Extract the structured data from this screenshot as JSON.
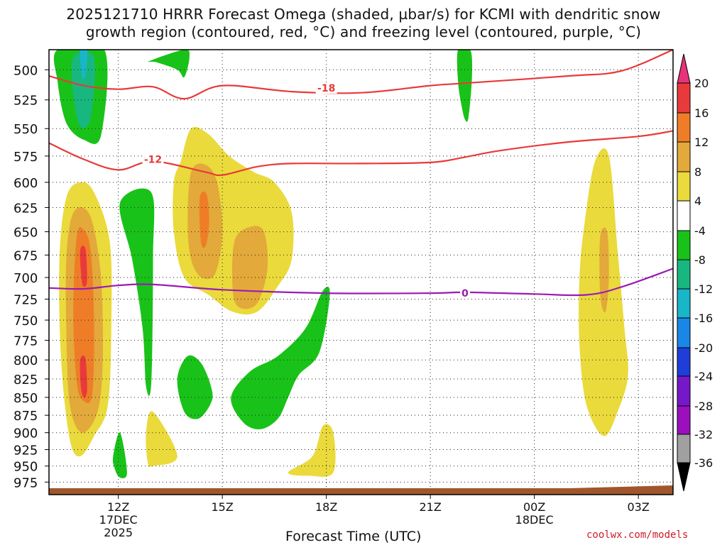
{
  "title_line1": "2025121710 HRRR Forecast Omega (shaded, µbar/s) for KCMI with dendritic snow",
  "title_line2": "growth region (contoured, red, °C) and freezing level (contoured, purple, °C)",
  "credit": "coolwx.com/models",
  "chart_data": {
    "type": "time-height",
    "xlabel": "Forecast Time (UTC)",
    "x_ticks": [
      {
        "label": "12Z",
        "sub": [
          "17DEC",
          "2025"
        ],
        "hour": 12
      },
      {
        "label": "15Z",
        "sub": [],
        "hour": 15
      },
      {
        "label": "18Z",
        "sub": [],
        "hour": 18
      },
      {
        "label": "21Z",
        "sub": [],
        "hour": 21
      },
      {
        "label": "00Z",
        "sub": [
          "18DEC"
        ],
        "hour": 24
      },
      {
        "label": "03Z",
        "sub": [],
        "hour": 27
      }
    ],
    "xlim_hours": [
      10,
      28
    ],
    "y_ticks": [
      500,
      525,
      550,
      575,
      600,
      625,
      650,
      675,
      700,
      725,
      750,
      775,
      800,
      825,
      850,
      875,
      900,
      925,
      950,
      975
    ],
    "ylim_hPa": [
      484,
      995
    ],
    "y_scale": "log-pressure",
    "grid": true,
    "colorbar": {
      "labels": [
        "20",
        "16",
        "12",
        "8",
        "4",
        "-4",
        "-8",
        "-12",
        "-16",
        "-20",
        "-24",
        "-28",
        "-32",
        "-36"
      ],
      "colors": [
        "#e8327a",
        "#e83a3a",
        "#ef7d28",
        "#e3a93a",
        "#eada3c",
        "#ffffff",
        "#19c219",
        "#18b77f",
        "#19b5c9",
        "#1a86e8",
        "#1f3dd9",
        "#7617c9",
        "#9c0fbc",
        "#a0a0a0",
        "#000000"
      ]
    },
    "omega_regions": [
      {
        "color": "#19c219",
        "pts": [
          [
            10.25,
            484
          ],
          [
            11.6,
            484
          ],
          [
            11.5,
            556
          ],
          [
            11.0,
            560
          ],
          [
            10.5,
            545
          ],
          [
            10.25,
            510
          ]
        ]
      },
      {
        "color": "#18b77f",
        "pts": [
          [
            10.7,
            490
          ],
          [
            11.3,
            490
          ],
          [
            11.2,
            540
          ],
          [
            10.9,
            548
          ],
          [
            10.7,
            520
          ]
        ]
      },
      {
        "color": "#19b5c9",
        "pts": [
          [
            10.9,
            484
          ],
          [
            11.1,
            484
          ],
          [
            11.05,
            505
          ],
          [
            10.95,
            505
          ]
        ]
      },
      {
        "color": "#19c219",
        "pts": [
          [
            12.9,
            493
          ],
          [
            13.9,
            484
          ],
          [
            14.05,
            490
          ],
          [
            13.9,
            506
          ],
          [
            13.7,
            500
          ],
          [
            13.1,
            494
          ]
        ]
      },
      {
        "color": "#19c219",
        "pts": [
          [
            21.8,
            484
          ],
          [
            22.15,
            484
          ],
          [
            22.2,
            505
          ],
          [
            22.1,
            540
          ],
          [
            22.0,
            542
          ],
          [
            21.9,
            530
          ],
          [
            21.8,
            510
          ]
        ]
      },
      {
        "color": "#eada3c",
        "pts": [
          [
            10.5,
            615
          ],
          [
            10.9,
            600
          ],
          [
            11.3,
            610
          ],
          [
            11.75,
            660
          ],
          [
            11.8,
            750
          ],
          [
            11.7,
            860
          ],
          [
            11.3,
            905
          ],
          [
            10.9,
            935
          ],
          [
            10.6,
            910
          ],
          [
            10.35,
            800
          ],
          [
            10.3,
            680
          ]
        ]
      },
      {
        "color": "#e3a93a",
        "pts": [
          [
            10.65,
            635
          ],
          [
            10.95,
            625
          ],
          [
            11.25,
            640
          ],
          [
            11.5,
            700
          ],
          [
            11.55,
            800
          ],
          [
            11.4,
            870
          ],
          [
            10.95,
            900
          ],
          [
            10.6,
            860
          ],
          [
            10.5,
            760
          ],
          [
            10.5,
            680
          ]
        ]
      },
      {
        "color": "#ef7d28",
        "pts": [
          [
            10.8,
            655
          ],
          [
            11.0,
            648
          ],
          [
            11.2,
            670
          ],
          [
            11.3,
            750
          ],
          [
            11.25,
            845
          ],
          [
            11.0,
            855
          ],
          [
            10.8,
            830
          ],
          [
            10.7,
            740
          ]
        ]
      },
      {
        "color": "#e83a3a",
        "pts": [
          [
            10.9,
            670
          ],
          [
            11.05,
            668
          ],
          [
            11.1,
            700
          ],
          [
            11.05,
            710
          ],
          [
            10.95,
            705
          ]
        ]
      },
      {
        "color": "#e83a3a",
        "pts": [
          [
            10.9,
            800
          ],
          [
            11.05,
            798
          ],
          [
            11.1,
            840
          ],
          [
            11.0,
            850
          ],
          [
            10.92,
            835
          ]
        ]
      },
      {
        "color": "#19c219",
        "pts": [
          [
            12.05,
            620
          ],
          [
            12.95,
            610
          ],
          [
            13.0,
            680
          ],
          [
            12.95,
            830
          ],
          [
            12.8,
            835
          ],
          [
            12.7,
            760
          ],
          [
            12.4,
            680
          ]
        ]
      },
      {
        "color": "#eada3c",
        "pts": [
          [
            13.8,
            580
          ],
          [
            14.1,
            550
          ],
          [
            14.6,
            555
          ],
          [
            15.2,
            575
          ],
          [
            15.9,
            590
          ],
          [
            16.5,
            600
          ],
          [
            17.0,
            630
          ],
          [
            17.0,
            680
          ],
          [
            16.6,
            710
          ],
          [
            16.0,
            740
          ],
          [
            15.3,
            740
          ],
          [
            14.6,
            720
          ],
          [
            13.9,
            700
          ],
          [
            13.6,
            650
          ],
          [
            13.6,
            600
          ]
        ]
      },
      {
        "color": "#e3a93a",
        "pts": [
          [
            14.1,
            590
          ],
          [
            14.5,
            583
          ],
          [
            14.85,
            600
          ],
          [
            15.0,
            650
          ],
          [
            14.8,
            695
          ],
          [
            14.4,
            700
          ],
          [
            14.1,
            680
          ],
          [
            14.0,
            640
          ]
        ]
      },
      {
        "color": "#ef7d28",
        "pts": [
          [
            14.35,
            615
          ],
          [
            14.55,
            612
          ],
          [
            14.62,
            640
          ],
          [
            14.52,
            665
          ],
          [
            14.38,
            660
          ]
        ]
      },
      {
        "color": "#e3a93a",
        "pts": [
          [
            15.35,
            660
          ],
          [
            15.8,
            645
          ],
          [
            16.2,
            650
          ],
          [
            16.3,
            690
          ],
          [
            16.0,
            730
          ],
          [
            15.5,
            735
          ],
          [
            15.3,
            715
          ]
        ]
      },
      {
        "color": "#19c219",
        "pts": [
          [
            13.7,
            825
          ],
          [
            14.0,
            795
          ],
          [
            14.4,
            805
          ],
          [
            14.7,
            840
          ],
          [
            14.65,
            860
          ],
          [
            14.3,
            880
          ],
          [
            13.9,
            870
          ]
        ]
      },
      {
        "color": "#19c219",
        "pts": [
          [
            15.25,
            850
          ],
          [
            15.8,
            815
          ],
          [
            16.6,
            795
          ],
          [
            17.4,
            760
          ],
          [
            17.9,
            715
          ],
          [
            18.1,
            720
          ],
          [
            17.8,
            790
          ],
          [
            17.2,
            820
          ],
          [
            16.9,
            850
          ],
          [
            16.6,
            880
          ],
          [
            16.1,
            895
          ],
          [
            15.6,
            885
          ]
        ]
      },
      {
        "color": "#19c219",
        "pts": [
          [
            11.85,
            935
          ],
          [
            12.05,
            900
          ],
          [
            12.25,
            960
          ],
          [
            12.05,
            968
          ],
          [
            11.9,
            955
          ]
        ]
      },
      {
        "color": "#eada3c",
        "pts": [
          [
            12.8,
            900
          ],
          [
            13.0,
            870
          ],
          [
            13.7,
            935
          ],
          [
            13.0,
            950
          ],
          [
            12.85,
            945
          ]
        ]
      },
      {
        "color": "#eada3c",
        "pts": [
          [
            16.9,
            960
          ],
          [
            17.6,
            935
          ],
          [
            17.9,
            890
          ],
          [
            18.2,
            900
          ],
          [
            18.2,
            960
          ],
          [
            17.5,
            965
          ]
        ]
      },
      {
        "color": "#eada3c",
        "pts": [
          [
            25.45,
            640
          ],
          [
            25.75,
            580
          ],
          [
            26.15,
            575
          ],
          [
            26.4,
            670
          ],
          [
            26.6,
            760
          ],
          [
            26.7,
            820
          ],
          [
            26.4,
            870
          ],
          [
            26.0,
            905
          ],
          [
            25.5,
            860
          ],
          [
            25.3,
            780
          ],
          [
            25.3,
            700
          ]
        ]
      },
      {
        "color": "#e3a93a",
        "pts": [
          [
            25.9,
            655
          ],
          [
            26.1,
            650
          ],
          [
            26.15,
            700
          ],
          [
            26.05,
            740
          ],
          [
            25.9,
            720
          ]
        ]
      }
    ],
    "isotherms": [
      {
        "label": "-18",
        "value": -18,
        "color": "#e83a3a",
        "label_at": [
          18.0,
          515
        ],
        "pts": [
          [
            10,
            505
          ],
          [
            11,
            513
          ],
          [
            12,
            516
          ],
          [
            13,
            514
          ],
          [
            13.9,
            524
          ],
          [
            15,
            513
          ],
          [
            17,
            518
          ],
          [
            19,
            519
          ],
          [
            21,
            513
          ],
          [
            22,
            511
          ],
          [
            25,
            505
          ],
          [
            26.5,
            501
          ],
          [
            28,
            484
          ]
        ]
      },
      {
        "label": "-12",
        "value": -12,
        "color": "#e83a3a",
        "label_at": [
          13.0,
          578
        ],
        "pts": [
          [
            10,
            563
          ],
          [
            11,
            578
          ],
          [
            12,
            588
          ],
          [
            13,
            580
          ],
          [
            14.5,
            590
          ],
          [
            15,
            593
          ],
          [
            16,
            585
          ],
          [
            17,
            582
          ],
          [
            19,
            582
          ],
          [
            21,
            581
          ],
          [
            22,
            576
          ],
          [
            23,
            570
          ],
          [
            25,
            562
          ],
          [
            27,
            557
          ],
          [
            28,
            552
          ]
        ]
      },
      {
        "label": "0",
        "value": 0,
        "color": "#9a1bb5",
        "label_at": [
          22.0,
          718
        ],
        "pts": [
          [
            10,
            712
          ],
          [
            11,
            713
          ],
          [
            12,
            709
          ],
          [
            13,
            708
          ],
          [
            15,
            714
          ],
          [
            18,
            718
          ],
          [
            21,
            718
          ],
          [
            22,
            717
          ],
          [
            24,
            719
          ],
          [
            25.5,
            720
          ],
          [
            26.5,
            711
          ],
          [
            28,
            690
          ]
        ]
      }
    ]
  }
}
